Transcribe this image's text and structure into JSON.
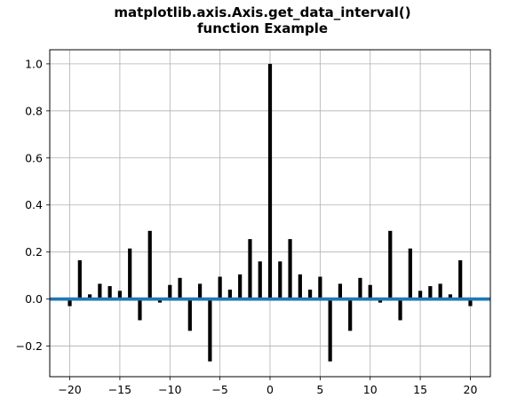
{
  "chart_data": {
    "type": "bar",
    "title": "matplotlib.axis.Axis.get_data_interval()\nfunction Example",
    "title_lines": [
      "matplotlib.axis.Axis.get_data_interval()",
      "function Example"
    ],
    "xlabel": "",
    "ylabel": "",
    "xlim": [
      -22,
      22
    ],
    "ylim": [
      -0.33,
      1.06
    ],
    "x_ticks": [
      -20,
      -15,
      -10,
      -5,
      0,
      5,
      10,
      15,
      20
    ],
    "x_tick_labels": [
      "−20",
      "−15",
      "−10",
      "−5",
      "0",
      "5",
      "10",
      "15",
      "20"
    ],
    "y_ticks": [
      -0.2,
      0.0,
      0.2,
      0.4,
      0.6,
      0.8,
      1.0
    ],
    "y_tick_labels": [
      "−0.2",
      "0.0",
      "0.2",
      "0.4",
      "0.6",
      "0.8",
      "1.0"
    ],
    "grid": true,
    "bar_color": "#000000",
    "hline": {
      "y": 0,
      "color": "#1f77b4"
    },
    "x": [
      -20,
      -19,
      -18,
      -17,
      -16,
      -15,
      -14,
      -13,
      -12,
      -11,
      -10,
      -9,
      -8,
      -7,
      -6,
      -5,
      -4,
      -3,
      -2,
      -1,
      0,
      1,
      2,
      3,
      4,
      5,
      6,
      7,
      8,
      9,
      10,
      11,
      12,
      13,
      14,
      15,
      16,
      17,
      18,
      19,
      20
    ],
    "values": [
      -0.03,
      0.165,
      0.02,
      0.065,
      0.055,
      0.035,
      0.215,
      -0.09,
      0.29,
      -0.015,
      0.06,
      0.09,
      -0.135,
      0.065,
      -0.265,
      0.095,
      0.04,
      0.105,
      0.255,
      0.16,
      1.0,
      0.16,
      0.255,
      0.105,
      0.04,
      0.095,
      -0.265,
      0.065,
      -0.135,
      0.09,
      0.06,
      -0.015,
      0.29,
      -0.09,
      0.215,
      0.035,
      0.055,
      0.065,
      0.02,
      0.165,
      -0.03
    ]
  }
}
